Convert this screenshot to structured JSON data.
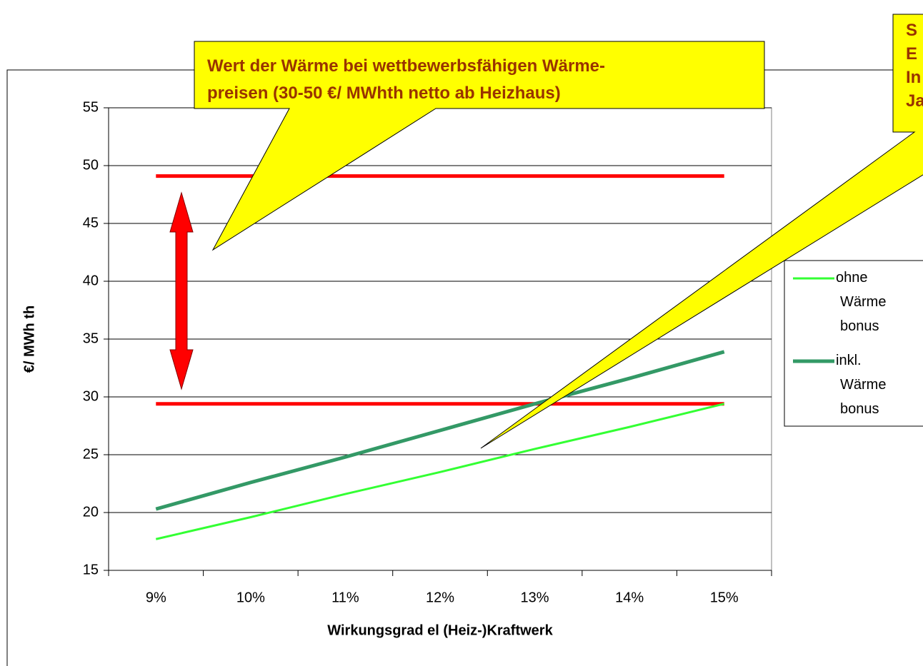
{
  "chart_data": {
    "type": "line",
    "y_label": "€/ MWh th",
    "x_label": "Wirkungsgrad el (Heiz-)Kraftwerk",
    "categories": [
      "9%",
      "10%",
      "11%",
      "12%",
      "13%",
      "14%",
      "15%"
    ],
    "series": [
      {
        "name": "ohne Wärme bonus",
        "color": "#33ff33",
        "values": [
          17.7,
          19.6,
          21.6,
          23.5,
          25.5,
          27.4,
          29.4
        ]
      },
      {
        "name": "inkl. Wärme bonus",
        "color": "#339966",
        "values": [
          20.3,
          22.6,
          24.8,
          27.1,
          29.4,
          31.6,
          33.9
        ]
      }
    ],
    "reference_lines": [
      {
        "color": "#ff0000",
        "values": [
          49.1,
          49.1,
          49.1,
          49.1,
          49.1,
          49.1,
          49.1
        ]
      },
      {
        "color": "#ff0000",
        "values": [
          29.4,
          29.4,
          29.4,
          29.4,
          29.4,
          29.4,
          29.4
        ]
      }
    ],
    "ylim": [
      15,
      55
    ],
    "yticks": [
      15,
      20,
      25,
      30,
      35,
      40,
      45,
      50,
      55
    ],
    "grid": true,
    "annotations": [
      {
        "lines": [
          "Wert der Wärme bei wettbewerbsfähigen Wärme-",
          "preisen (30-50 €/ MWhth netto ab Heizhaus)"
        ]
      },
      {
        "lines": [
          "S",
          "E",
          "In",
          "Ja"
        ]
      }
    ]
  }
}
